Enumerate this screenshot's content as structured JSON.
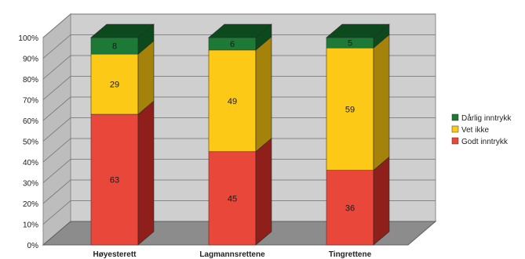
{
  "chart_data": {
    "type": "bar",
    "stacked": true,
    "three_d": true,
    "categories": [
      "Høyesterett",
      "Lagmannsrettene",
      "Tingrettene"
    ],
    "series": [
      {
        "name": "Godt inntrykk",
        "values": [
          63,
          45,
          36
        ],
        "color": "#e8473a",
        "side_color": "#8e1f1a"
      },
      {
        "name": "Vet ikke",
        "values": [
          29,
          49,
          59
        ],
        "color": "#fcc916",
        "side_color": "#a5820a"
      },
      {
        "name": "Dårlig inntrykk",
        "values": [
          8,
          6,
          5
        ],
        "color": "#1c7a36",
        "side_color": "#0c4a1d"
      }
    ],
    "y_ticks": [
      "0%",
      "10%",
      "20%",
      "30%",
      "40%",
      "50%",
      "60%",
      "70%",
      "80%",
      "90%",
      "100%"
    ],
    "ylim": [
      0,
      100
    ],
    "grid": true,
    "legend_position": "right",
    "wall_color": "#cfcfcf",
    "floor_color": "#8c8c8c"
  }
}
